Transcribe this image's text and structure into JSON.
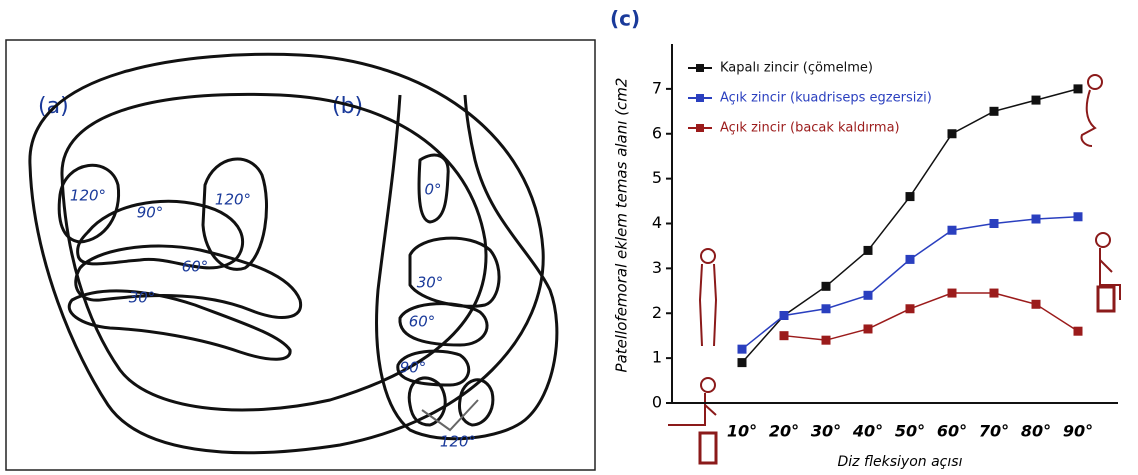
{
  "chart_data": {
    "type": "line",
    "title": "(c)",
    "x_label": "Diz fleksiyon açısı",
    "y_label": "Patellofemoral eklem temas alanı (cm2",
    "categories": [
      "10°",
      "20°",
      "30°",
      "40°",
      "50°",
      "60°",
      "70°",
      "80°",
      "90°"
    ],
    "series": [
      {
        "name": "Kapalı zincir (çömelme)",
        "color": "#111111",
        "values": [
          0.9,
          1.95,
          2.6,
          3.4,
          4.6,
          6.0,
          6.5,
          6.75,
          7.0
        ]
      },
      {
        "name": "Açık zincir (kuadriseps egzersizi)",
        "color": "#2a3fbf",
        "values": [
          1.2,
          1.95,
          2.1,
          2.4,
          3.2,
          3.85,
          4.0,
          4.1,
          4.15
        ]
      },
      {
        "name": "Açık zincir (bacak kaldırma)",
        "color": "#9b1b1b",
        "values": [
          null,
          1.5,
          1.4,
          1.65,
          2.1,
          2.45,
          2.45,
          2.2,
          1.6
        ]
      }
    ],
    "ylim": [
      0,
      8
    ],
    "yticks": [
      0,
      1,
      2,
      3,
      4,
      5,
      6,
      7
    ],
    "legend": "upper left",
    "grid": false
  },
  "diagram": {
    "panel_a": {
      "label": "(a)",
      "regions": [
        "120°",
        "120°",
        "90°",
        "60°",
        "30°"
      ]
    },
    "panel_b": {
      "label": "(b)",
      "regions": [
        "0°",
        "30°",
        "60°",
        "90°",
        "120°"
      ]
    }
  }
}
